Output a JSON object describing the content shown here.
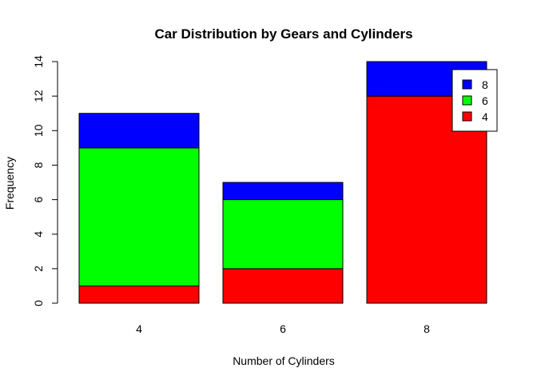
{
  "chart_data": {
    "type": "bar",
    "stacked": true,
    "title": "Car Distribution by Gears and Cylinders",
    "xlabel": "Number of Cylinders",
    "ylabel": "Frequency",
    "categories": [
      "4",
      "6",
      "8"
    ],
    "ylim": [
      0,
      14
    ],
    "yticks": [
      "0",
      "2",
      "4",
      "6",
      "8",
      "10",
      "12",
      "14"
    ],
    "grid": false,
    "legend_position": "top-right",
    "series": [
      {
        "name": "4",
        "color": "#ff0000",
        "values": [
          1,
          2,
          12
        ]
      },
      {
        "name": "6",
        "color": "#00ff00",
        "values": [
          8,
          4,
          0
        ]
      },
      {
        "name": "8",
        "color": "#0000ff",
        "values": [
          2,
          1,
          2
        ]
      }
    ],
    "legend_order": [
      "8",
      "6",
      "4"
    ]
  }
}
